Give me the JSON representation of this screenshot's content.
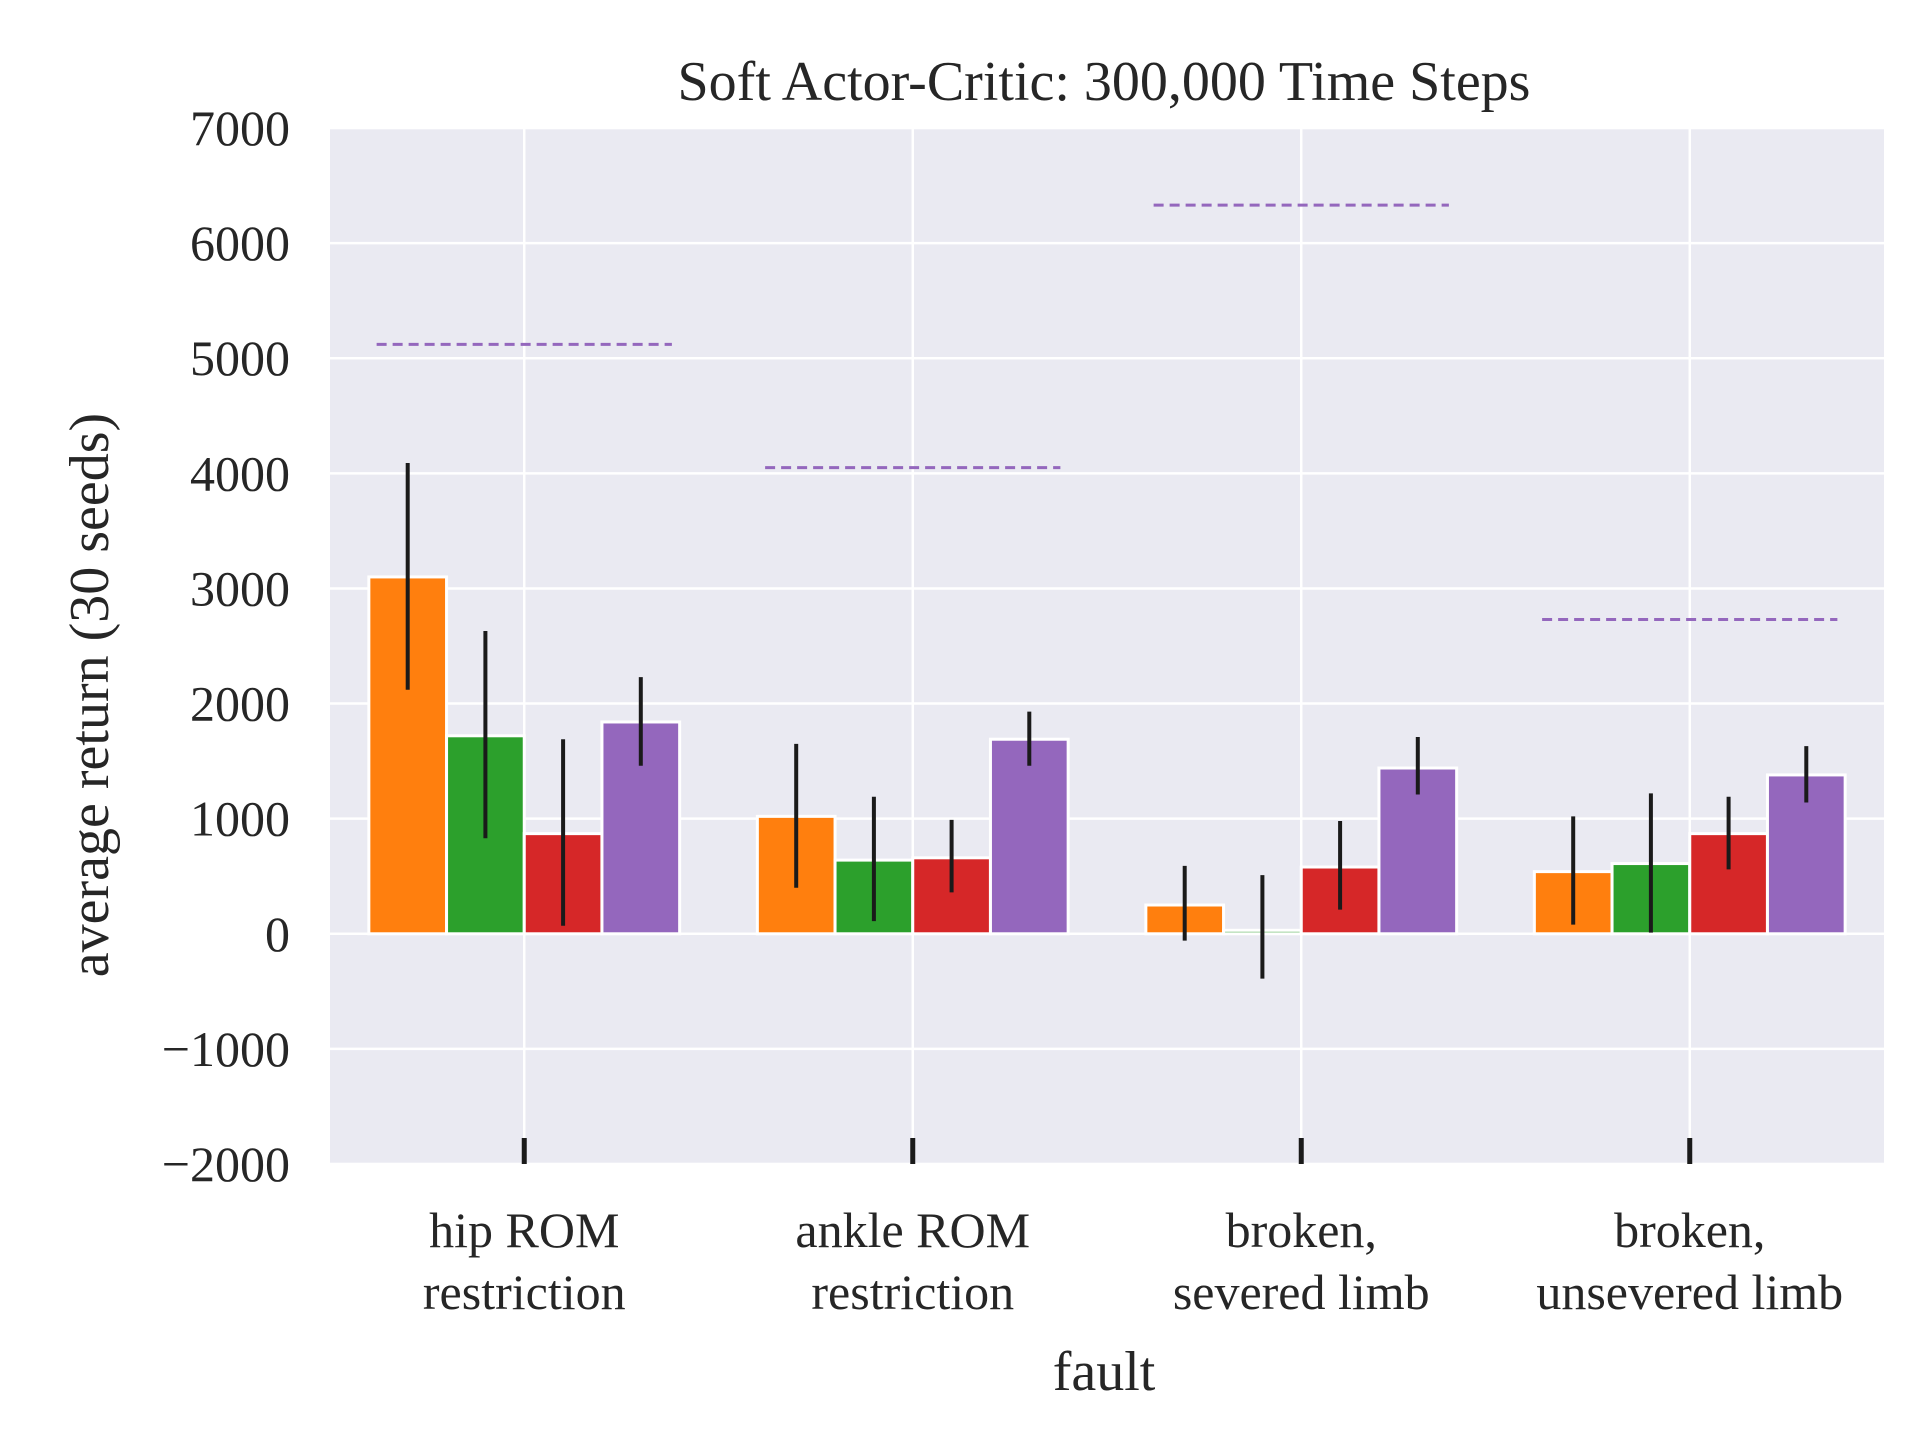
{
  "chart_data": {
    "type": "bar",
    "title": "Soft Actor-Critic: 300,000 Time Steps",
    "xlabel": "fault",
    "ylabel": "average return (30 seeds)",
    "ylim": [
      -2000,
      7000
    ],
    "yticks": [
      "−2000",
      "−1000",
      "0",
      "1000",
      "2000",
      "3000",
      "4000",
      "5000",
      "6000",
      "7000"
    ],
    "grid": true,
    "categories": [
      [
        "hip ROM",
        "restriction"
      ],
      [
        "ankle ROM",
        "restriction"
      ],
      [
        "broken,",
        "severed limb"
      ],
      [
        "broken,",
        "unsevered limb"
      ]
    ],
    "series": [
      {
        "color": "#ff7f0e",
        "values": [
          3100,
          1020,
          250,
          540
        ],
        "err_low": [
          2120,
          400,
          -60,
          80
        ],
        "err_high": [
          4090,
          1650,
          590,
          1020
        ]
      },
      {
        "color": "#2ca02c",
        "values": [
          1720,
          640,
          30,
          610
        ],
        "err_low": [
          830,
          110,
          -390,
          10
        ],
        "err_high": [
          2630,
          1190,
          510,
          1220
        ]
      },
      {
        "color": "#d62728",
        "values": [
          870,
          660,
          580,
          870
        ],
        "err_low": [
          70,
          360,
          210,
          560
        ],
        "err_high": [
          1690,
          990,
          980,
          1190
        ]
      },
      {
        "color": "#9467bd",
        "values": [
          1840,
          1690,
          1440,
          1380
        ],
        "err_low": [
          1460,
          1460,
          1210,
          1140
        ],
        "err_high": [
          2230,
          1930,
          1710,
          1630
        ]
      }
    ],
    "reference": {
      "color": "#9467bd",
      "style": "dashed",
      "values": [
        5120,
        4050,
        6330,
        2730
      ]
    }
  }
}
